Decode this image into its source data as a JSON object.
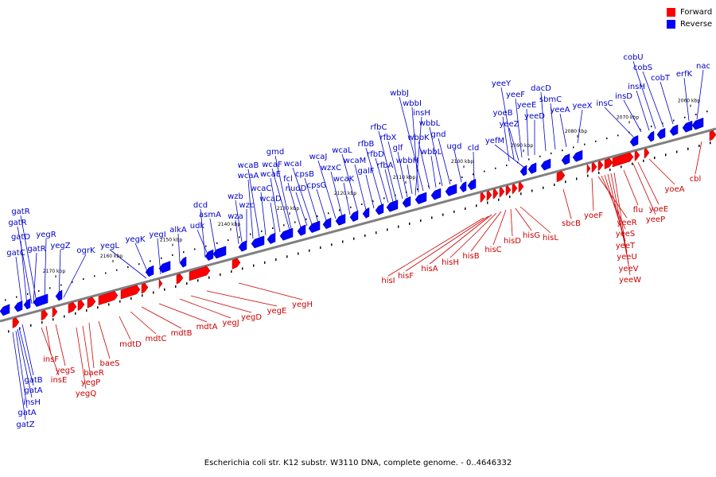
{
  "legend": {
    "forward": {
      "label": "Forward",
      "color": "#ff0000"
    },
    "reverse": {
      "label": "Reverse",
      "color": "#0000ff"
    }
  },
  "caption": "Escherichia coli str. K12 substr. W3110 DNA, complete genome. - 0..4646332",
  "colors": {
    "forward_label": "#cc0000",
    "reverse_label": "#0000cc",
    "backbone": "#808080"
  },
  "ticks": [
    "2060 kbp",
    "2070 kbp",
    "2080 kbp",
    "2090 kbp",
    "2100 kbp",
    "2110 kbp",
    "2120 kbp",
    "2130 kbp",
    "2140 kbp",
    "2150 kbp",
    "2160 kbp",
    "2170 kbp"
  ],
  "reverse_genes": [
    "nac",
    "erfK",
    "cobT",
    "cobS",
    "cobU",
    "insH",
    "insD",
    "insC",
    "yeeX",
    "yeeA",
    "sbmC",
    "dacD",
    "yeeD",
    "yeeE",
    "yeeF",
    "yeeY",
    "yeeZ",
    "yoeB",
    "yefM",
    "cld",
    "ugd",
    "gnd",
    "wbbL",
    "wbbL",
    "wbbK",
    "wbbJ",
    "wbbI",
    "wbbH",
    "insH",
    "glf",
    "rfbX",
    "rfbC",
    "rfbA",
    "rfbD",
    "rfbB",
    "galF",
    "wcaM",
    "wcaL",
    "wcaK",
    "wzxC",
    "wcaJ",
    "cpsG",
    "cpsB",
    "wcaI",
    "nudD",
    "fcl",
    "wcaF",
    "wcaE",
    "gmd",
    "wcaD",
    "wcaC",
    "wcaB",
    "wcaA",
    "wzb",
    "wzc",
    "wza",
    "udk",
    "dcd",
    "asmA",
    "alkA",
    "yegI",
    "yegK",
    "yegL",
    "ogrK",
    "yegZ",
    "yegR",
    "gatR",
    "gatR",
    "gatD",
    "gatC",
    "gatR"
  ],
  "forward_genes_top": [
    "yegH",
    "yegE",
    "yegD",
    "yegJ",
    "mdtA",
    "mdtB",
    "mdtC",
    "mdtD",
    "baeS",
    "baeR",
    "yegP",
    "yegQ",
    "yegS",
    "insF",
    "insE"
  ],
  "forward_genes_mid": [
    "hisL",
    "hisG",
    "hisD",
    "hisC",
    "hisB",
    "hisH",
    "hisA",
    "hisF",
    "hisI",
    "sbcB",
    "yoeF",
    "yeeR",
    "yeeS",
    "yeeT",
    "yeeU",
    "yeeV",
    "yeeW",
    "flu",
    "yoeE",
    "yeeP",
    "yoeA",
    "cbl"
  ],
  "reverse_genes_bottom": [
    "gatB",
    "gatA",
    "insH",
    "gatA",
    "gatZ"
  ]
}
